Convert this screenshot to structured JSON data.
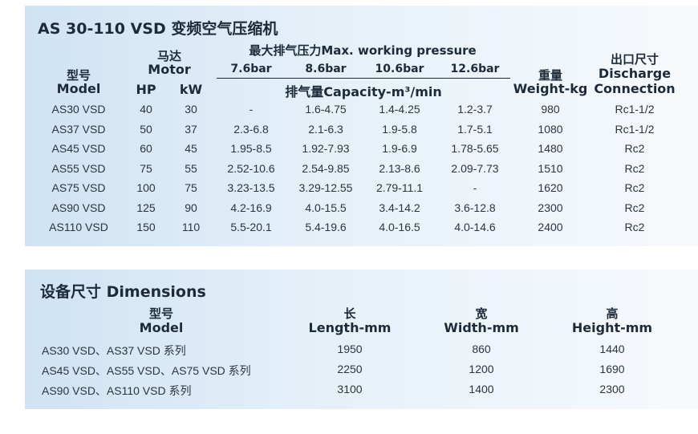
{
  "spec_table": {
    "title": "AS 30-110 VSD 变频空气压缩机",
    "headers": {
      "model_cn": "型号",
      "model_en": "Model",
      "motor_cn": "马达",
      "motor_en": "Motor",
      "hp": "HP",
      "kw": "kW",
      "pressure": "最大排气压力Max. working pressure",
      "pressures": [
        "7.6bar",
        "8.6bar",
        "10.6bar",
        "12.6bar"
      ],
      "capacity": "排气量Capacity-m³/min",
      "weight_cn": "重量",
      "weight_en": "Weight-kg",
      "discharge_cn": "出口尺寸",
      "discharge_en1": "Discharge",
      "discharge_en2": "Connection"
    },
    "rows": [
      [
        "AS30 VSD",
        "40",
        "30",
        "-",
        "1.6-4.75",
        "1.4-4.25",
        "1.2-3.7",
        "980",
        "Rc1-1/2"
      ],
      [
        "AS37 VSD",
        "50",
        "37",
        "2.3-6.8",
        "2.1-6.3",
        "1.9-5.8",
        "1.7-5.1",
        "1080",
        "Rc1-1/2"
      ],
      [
        "AS45 VSD",
        "60",
        "45",
        "1.95-8.5",
        "1.92-7.93",
        "1.9-6.9",
        "1.78-5.65",
        "1480",
        "Rc2"
      ],
      [
        "AS55 VSD",
        "75",
        "55",
        "2.52-10.6",
        "2.54-9.85",
        "2.13-8.6",
        "2.09-7.73",
        "1510",
        "Rc2"
      ],
      [
        "AS75 VSD",
        "100",
        "75",
        "3.23-13.5",
        "3.29-12.55",
        "2.79-11.1",
        "-",
        "1620",
        "Rc2"
      ],
      [
        "AS90 VSD",
        "125",
        "90",
        "4.2-16.9",
        "4.0-15.5",
        "3.4-14.2",
        "3.6-12.8",
        "2300",
        "Rc2"
      ],
      [
        "AS110 VSD",
        "150",
        "110",
        "5.5-20.1",
        "5.4-19.6",
        "4.0-16.5",
        "4.0-14.6",
        "2400",
        "Rc2"
      ]
    ]
  },
  "dim_table": {
    "title": "设备尺寸 Dimensions",
    "headers": {
      "model_cn": "型号",
      "model_en": "Model",
      "length_cn": "长",
      "length_en": "Length-mm",
      "width_cn": "宽",
      "width_en": "Width-mm",
      "height_cn": "高",
      "height_en": "Height-mm"
    },
    "rows": [
      [
        "AS30 VSD、AS37 VSD 系列",
        "1950",
        "860",
        "1440"
      ],
      [
        "AS45 VSD、AS55 VSD、AS75 VSD 系列",
        "2250",
        "1200",
        "1690"
      ],
      [
        "AS90 VSD、AS110 VSD 系列",
        "3100",
        "1400",
        "2300"
      ]
    ]
  }
}
